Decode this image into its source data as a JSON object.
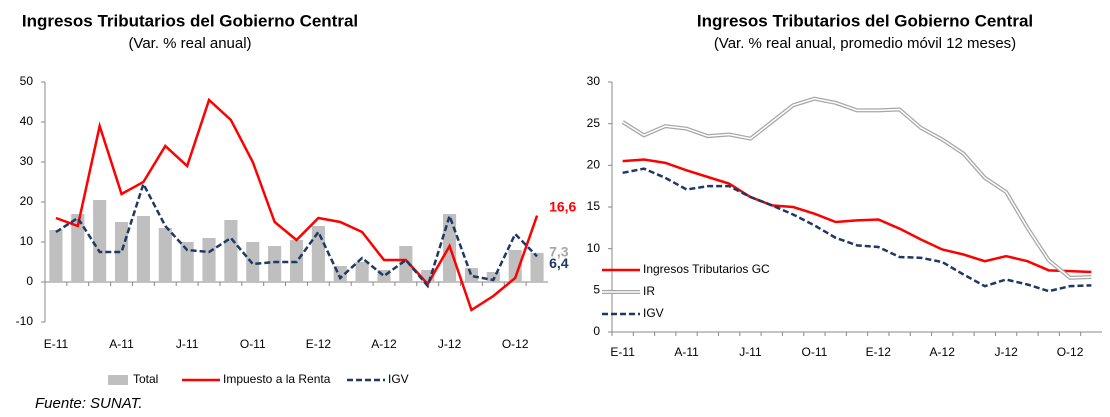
{
  "chart_data": [
    {
      "type": "bar_line",
      "title": "Ingresos Tributarios del Gobierno Central",
      "subtitle": "(Var. % real anual)",
      "categories": [
        "E-11",
        null,
        null,
        "A-11",
        null,
        null,
        "J-11",
        null,
        null,
        "O-11",
        null,
        null,
        "E-12",
        null,
        null,
        "A-12",
        null,
        null,
        "J-12",
        null,
        null,
        "O-12",
        null
      ],
      "ylim": [
        -10,
        50
      ],
      "yticks": [
        -10,
        0,
        10,
        20,
        30,
        40,
        50
      ],
      "legend": "bottom",
      "series": [
        {
          "name": "Total",
          "type": "bar",
          "color": "#bfbfbf",
          "values": [
            13,
            17,
            20.5,
            15,
            16.5,
            13.5,
            10,
            11,
            15.5,
            10,
            9,
            10.5,
            14,
            4,
            5,
            3,
            9,
            3,
            17,
            3.5,
            2.5,
            8,
            7.3
          ],
          "value_labels": [
            null,
            null,
            null,
            null,
            null,
            null,
            null,
            null,
            null,
            null,
            null,
            null,
            null,
            null,
            null,
            null,
            null,
            null,
            null,
            null,
            null,
            null,
            "7,3"
          ]
        },
        {
          "name": "Impuesto a la Renta",
          "type": "line",
          "color": "#ff0000",
          "values": [
            16,
            14,
            39,
            22,
            25,
            34,
            29,
            45.5,
            40.5,
            30,
            15,
            10.5,
            16,
            15,
            12.5,
            5.5,
            5.5,
            -0.5,
            9,
            -7,
            -3.5,
            1,
            16.6
          ],
          "value_labels": [
            null,
            null,
            null,
            null,
            null,
            null,
            null,
            null,
            null,
            null,
            null,
            null,
            null,
            null,
            null,
            null,
            null,
            null,
            null,
            null,
            null,
            null,
            "16,6"
          ]
        },
        {
          "name": "IGV",
          "type": "line",
          "style": "dashed",
          "color": "#1f3864",
          "values": [
            12.5,
            16,
            7.5,
            7.5,
            24.5,
            14,
            8,
            7.5,
            11,
            4.5,
            5,
            5,
            12.5,
            1,
            6,
            1.5,
            5.5,
            -1,
            16.5,
            1.5,
            0.5,
            12,
            6.4
          ],
          "value_labels": [
            null,
            null,
            null,
            null,
            null,
            null,
            null,
            null,
            null,
            null,
            null,
            null,
            null,
            null,
            null,
            null,
            null,
            null,
            null,
            null,
            null,
            null,
            "6,4"
          ]
        }
      ]
    },
    {
      "type": "line",
      "title": "Ingresos Tributarios del Gobierno Central",
      "subtitle": "(Var. % real anual, promedio móvil 12 meses)",
      "categories": [
        "E-11",
        null,
        null,
        "A-11",
        null,
        null,
        "J-11",
        null,
        null,
        "O-11",
        null,
        null,
        "E-12",
        null,
        null,
        "A-12",
        null,
        null,
        "J-12",
        null,
        null,
        "O-12",
        null
      ],
      "ylim": [
        0,
        30
      ],
      "yticks": [
        0,
        5,
        10,
        15,
        20,
        25,
        30
      ],
      "legend": "lower left",
      "series": [
        {
          "name": "Ingresos Tributarios GC",
          "type": "line",
          "color": "#ff0000",
          "values": [
            20.5,
            20.7,
            20.3,
            19.4,
            18.6,
            17.8,
            16.2,
            15.2,
            15,
            14.2,
            13.2,
            13.4,
            13.5,
            12.4,
            11.1,
            9.9,
            9.3,
            8.5,
            9.1,
            8.5,
            7.4,
            7.3,
            7.2
          ]
        },
        {
          "name": "IR",
          "type": "line",
          "style": "double",
          "color": "#a6a6a6",
          "values": [
            25.2,
            23.6,
            24.7,
            24.4,
            23.5,
            23.7,
            23.2,
            25.2,
            27.2,
            28,
            27.5,
            26.6,
            26.6,
            26.7,
            24.5,
            23.1,
            21.4,
            18.5,
            16.8,
            12.5,
            8.6,
            6.5,
            6.6
          ]
        },
        {
          "name": "IGV",
          "type": "line",
          "style": "dashed",
          "color": "#1f3864",
          "values": [
            19.1,
            19.6,
            18.5,
            17.1,
            17.5,
            17.5,
            16.2,
            15.2,
            14.1,
            12.8,
            11.3,
            10.4,
            10.2,
            9,
            8.9,
            8.4,
            6.9,
            5.5,
            6.3,
            5.7,
            4.9,
            5.5,
            5.6
          ]
        }
      ]
    }
  ],
  "source": "Fuente: SUNAT."
}
